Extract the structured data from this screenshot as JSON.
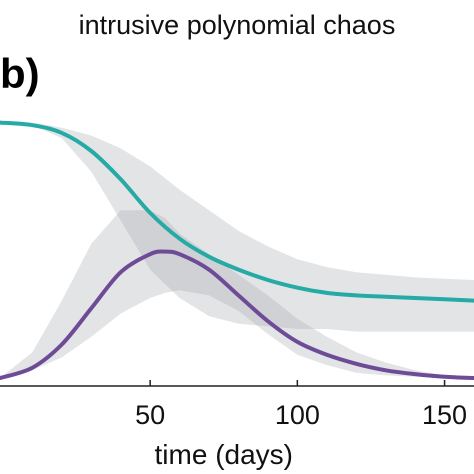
{
  "title": "intrusive polynomial chaos",
  "panel_label": "b)",
  "chart_data": {
    "type": "line",
    "title": "intrusive polynomial chaos",
    "xlabel": "time (days)",
    "ylabel": "",
    "xlim": [
      -1,
      160
    ],
    "ylim": [
      0,
      1
    ],
    "xticks": [
      50,
      100,
      150
    ],
    "xtick_labels": [
      "50",
      "100",
      "150"
    ],
    "grid": false,
    "legend": "none",
    "series": [
      {
        "color": "#26aaa5",
        "x": [
          -1,
          10,
          20,
          30,
          40,
          50,
          60,
          70,
          80,
          90,
          100,
          110,
          120,
          130,
          140,
          150,
          160
        ],
        "values": [
          0.99,
          0.98,
          0.95,
          0.88,
          0.77,
          0.64,
          0.54,
          0.47,
          0.42,
          0.38,
          0.35,
          0.33,
          0.32,
          0.315,
          0.31,
          0.305,
          0.3
        ],
        "band_lower": [
          0.99,
          0.98,
          0.93,
          0.8,
          0.61,
          0.42,
          0.31,
          0.24,
          0.21,
          0.2,
          0.19,
          0.19,
          0.18,
          0.18,
          0.18,
          0.18,
          0.18
        ],
        "band_upper": [
          0.99,
          0.99,
          0.97,
          0.94,
          0.89,
          0.82,
          0.73,
          0.65,
          0.57,
          0.51,
          0.46,
          0.43,
          0.41,
          0.4,
          0.39,
          0.385,
          0.38
        ]
      },
      {
        "color": "#6e4b96",
        "x": [
          -1,
          10,
          20,
          30,
          40,
          50,
          55,
          60,
          70,
          80,
          90,
          100,
          110,
          120,
          130,
          140,
          150,
          160
        ],
        "values": [
          0.0,
          0.04,
          0.13,
          0.27,
          0.41,
          0.48,
          0.49,
          0.48,
          0.42,
          0.32,
          0.22,
          0.14,
          0.09,
          0.055,
          0.03,
          0.015,
          0.005,
          0.0
        ],
        "band_lower": [
          0.0,
          0.03,
          0.08,
          0.16,
          0.25,
          0.31,
          0.33,
          0.34,
          0.32,
          0.26,
          0.17,
          0.09,
          0.05,
          0.02,
          0.01,
          0.005,
          0.0,
          0.0
        ],
        "band_upper": [
          0.0,
          0.1,
          0.3,
          0.52,
          0.65,
          0.65,
          0.62,
          0.56,
          0.48,
          0.4,
          0.32,
          0.23,
          0.16,
          0.1,
          0.06,
          0.03,
          0.01,
          0.0
        ]
      }
    ]
  }
}
